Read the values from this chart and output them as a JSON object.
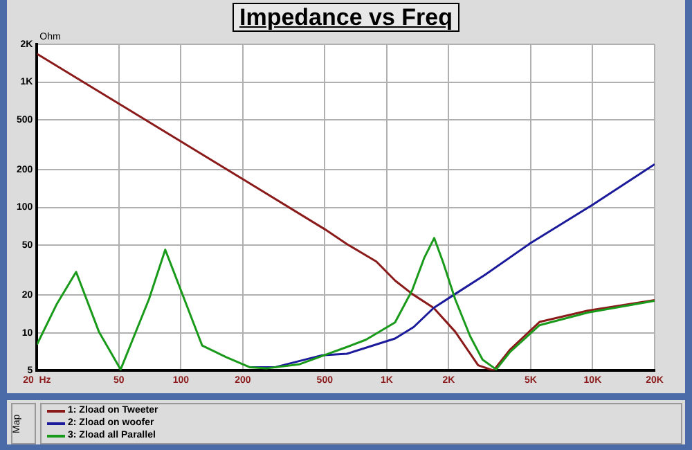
{
  "chart_data": {
    "type": "line",
    "title": "Impedance vs Freq",
    "ylabel": "Ohm",
    "log": "xy",
    "grid": true,
    "legend": "bottom",
    "marker": "none",
    "line_style": "solid",
    "xlim": [
      20,
      20000
    ],
    "xticks": [
      {
        "value": 20,
        "label": "20  Hz"
      },
      50,
      100,
      200,
      500,
      {
        "value": 1000,
        "label": "1K"
      },
      {
        "value": 2000,
        "label": "2K"
      },
      {
        "value": 5000,
        "label": "5K"
      },
      {
        "value": 10000,
        "label": "10K"
      },
      {
        "value": 20000,
        "label": "20K"
      }
    ],
    "ylim": [
      5,
      2000
    ],
    "yticks": [
      5,
      10,
      20,
      50,
      100,
      200,
      500,
      {
        "value": 1000,
        "label": "1K"
      },
      {
        "value": 2000,
        "label": "2K"
      }
    ],
    "annotations": [
      "Map"
    ],
    "series": [
      {
        "name": "1: Zload on Tweeter",
        "color": "#8b1a1a",
        "x": [
          20,
          50,
          100,
          200,
          500,
          640,
          890,
          1100,
          1330,
          1690,
          2150,
          2780,
          3300,
          3960,
          5520,
          9460,
          20000
        ],
        "values": [
          1680,
          672,
          336,
          168,
          67,
          51,
          37,
          26,
          20.4,
          15.8,
          10.2,
          5.5,
          5,
          7.3,
          12.2,
          15,
          18.2
        ]
      },
      {
        "name": "2: Zload on woofer",
        "color": "#1a1a9a",
        "x": [
          217,
          285,
          482,
          640,
          1097,
          1350,
          1690,
          2150,
          3000,
          5000,
          10000,
          20000
        ],
        "values": [
          5.3,
          5.3,
          6.6,
          6.8,
          9,
          11.1,
          15.8,
          20.4,
          29,
          52,
          105,
          221
        ]
      },
      {
        "name": "3: Zload all Parallel",
        "color": "#1a9a1a",
        "x": [
          20,
          25,
          31,
          40,
          51,
          70,
          84,
          127,
          166,
          217,
          260,
          375,
          640,
          792,
          1097,
          1330,
          1520,
          1700,
          1880,
          2150,
          2540,
          2920,
          3400,
          3960,
          5520,
          9460,
          20000
        ],
        "values": [
          8.05,
          17,
          30.6,
          10.2,
          5.1,
          18.5,
          46,
          7.9,
          6.4,
          5.3,
          5.2,
          5.6,
          7.7,
          8.8,
          12.1,
          21.9,
          39.5,
          57,
          36.3,
          18.5,
          9.4,
          6.1,
          5.1,
          7,
          11.5,
          14.5,
          18
        ]
      }
    ]
  }
}
